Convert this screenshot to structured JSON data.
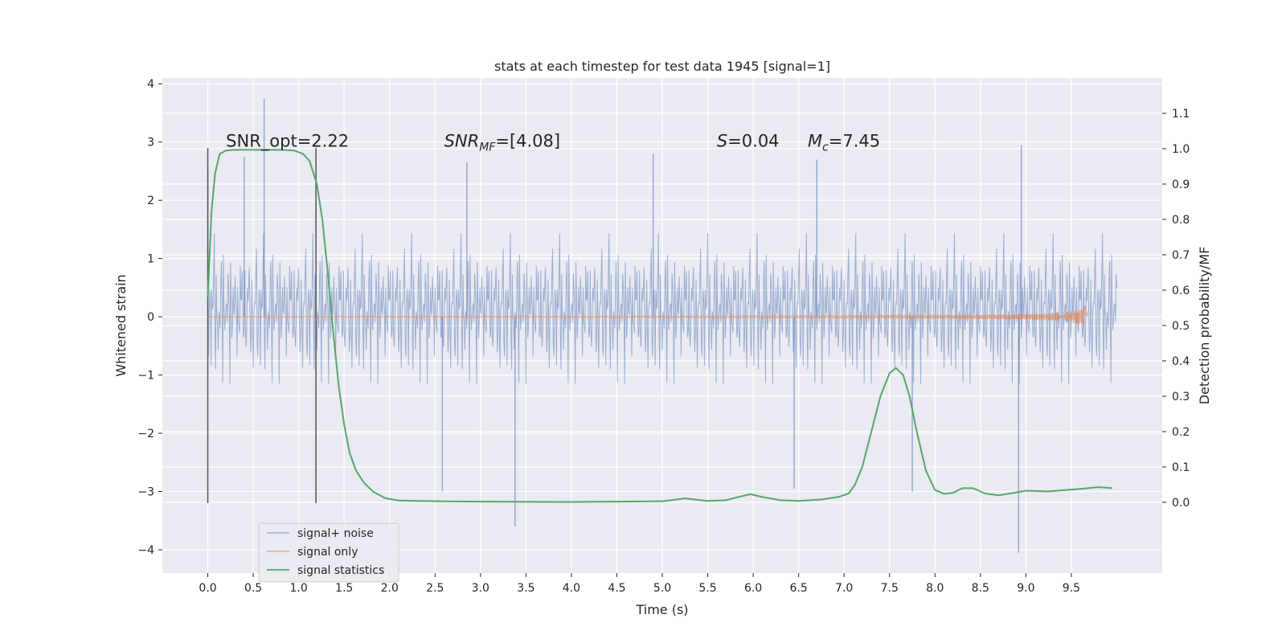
{
  "chart_data": {
    "type": "line",
    "title": "stats at each timestep for test data 1945 [signal=1]",
    "xlabel": "Time (s)",
    "ylabel": "Whitened strain",
    "ylabel_right": "Detection probability/MF",
    "xlim": [
      -0.5,
      10.5
    ],
    "ylim": [
      -4.4,
      4.1
    ],
    "ylim_right": [
      -0.2,
      1.2
    ],
    "x_ticks": [
      0.0,
      0.5,
      1.0,
      1.5,
      2.0,
      2.5,
      3.0,
      3.5,
      4.0,
      4.5,
      5.0,
      5.5,
      6.0,
      6.5,
      7.0,
      7.5,
      8.0,
      8.5,
      9.0,
      9.5
    ],
    "x_tick_labels": [
      "0.0",
      "0.5",
      "1.0",
      "1.5",
      "2.0",
      "2.5",
      "3.0",
      "3.5",
      "4.0",
      "4.5",
      "5.0",
      "5.5",
      "6.0",
      "6.5",
      "7.0",
      "7.5",
      "8.0",
      "8.5",
      "9.0",
      "9.5"
    ],
    "y_ticks": [
      -4,
      -3,
      -2,
      -1,
      0,
      1,
      2,
      3,
      4
    ],
    "y_tick_labels": [
      "−4",
      "−3",
      "−2",
      "−1",
      "0",
      "1",
      "2",
      "3",
      "4"
    ],
    "y_right_ticks": [
      0.0,
      0.1,
      0.2,
      0.3,
      0.4,
      0.5,
      0.6,
      0.7,
      0.8,
      0.9,
      1.0,
      1.1
    ],
    "y_right_tick_labels": [
      "0.0",
      "0.1",
      "0.2",
      "0.3",
      "0.4",
      "0.5",
      "0.6",
      "0.7",
      "0.8",
      "0.9",
      "1.0",
      "1.1"
    ],
    "grid": true,
    "legend_position": "lower-left",
    "vertical_markers": [
      {
        "x": 0.0,
        "y_range": [
          -3.2,
          2.9
        ]
      },
      {
        "x": 1.19,
        "y_range": [
          -3.2,
          2.9
        ]
      }
    ],
    "annotations": [
      {
        "text": "SNR_opt=2.22",
        "x": 0.2,
        "y": 3.0
      },
      {
        "text_parts": [
          "SNR",
          "MF",
          "=[4.08]"
        ],
        "x": 2.6,
        "y": 3.0
      },
      {
        "text_parts": [
          "S",
          "=0.04"
        ],
        "x": 5.6,
        "y": 3.0
      },
      {
        "text_parts": [
          "M",
          "c",
          "=7.45"
        ],
        "x": 6.6,
        "y": 3.0
      }
    ],
    "series": [
      {
        "name": "signal+ noise",
        "color": "#4c72b0",
        "axis": "left",
        "style": "noise",
        "x_range": [
          0.0,
          10.0
        ],
        "typical_amplitude": 1.3,
        "peaks": [
          {
            "x": 0.62,
            "y": 3.75
          },
          {
            "x": 0.4,
            "y": 2.75
          },
          {
            "x": 0.0,
            "y": 2.5
          },
          {
            "x": 2.85,
            "y": 2.65
          },
          {
            "x": 4.9,
            "y": 2.8
          },
          {
            "x": 6.7,
            "y": 2.7
          },
          {
            "x": 8.95,
            "y": 2.95
          },
          {
            "x": 3.38,
            "y": -3.6
          },
          {
            "x": 8.92,
            "y": -4.05
          },
          {
            "x": 2.58,
            "y": -3.0
          },
          {
            "x": 6.45,
            "y": -2.95
          },
          {
            "x": 7.75,
            "y": -3.0
          }
        ]
      },
      {
        "name": "signal only",
        "color": "#dd8452",
        "axis": "left",
        "style": "chirp",
        "x_range": [
          0.0,
          9.68
        ],
        "max_amplitude": 0.25
      },
      {
        "name": "signal statistics",
        "color": "#55a868",
        "axis": "right",
        "style": "line",
        "x": [
          0.0,
          0.04,
          0.08,
          0.13,
          0.2,
          0.3,
          0.5,
          0.8,
          0.95,
          1.05,
          1.12,
          1.2,
          1.26,
          1.32,
          1.38,
          1.44,
          1.5,
          1.56,
          1.63,
          1.72,
          1.82,
          1.95,
          2.1,
          2.5,
          3.0,
          3.5,
          4.0,
          4.5,
          5.0,
          5.25,
          5.5,
          5.7,
          5.85,
          5.97,
          6.1,
          6.3,
          6.5,
          6.75,
          6.95,
          7.05,
          7.12,
          7.2,
          7.3,
          7.4,
          7.5,
          7.57,
          7.65,
          7.72,
          7.8,
          7.9,
          8.0,
          8.1,
          8.2,
          8.3,
          8.42,
          8.55,
          8.7,
          8.85,
          9.0,
          9.1,
          9.25,
          9.4,
          9.6,
          9.8,
          9.95
        ],
        "values": [
          0.58,
          0.82,
          0.93,
          0.985,
          0.995,
          0.997,
          0.997,
          0.997,
          0.995,
          0.985,
          0.965,
          0.9,
          0.8,
          0.65,
          0.48,
          0.33,
          0.22,
          0.14,
          0.09,
          0.055,
          0.03,
          0.012,
          0.005,
          0.003,
          0.002,
          0.0015,
          0.001,
          0.002,
          0.003,
          0.011,
          0.004,
          0.006,
          0.016,
          0.023,
          0.015,
          0.006,
          0.004,
          0.008,
          0.016,
          0.025,
          0.05,
          0.1,
          0.2,
          0.3,
          0.365,
          0.38,
          0.36,
          0.3,
          0.2,
          0.09,
          0.035,
          0.024,
          0.027,
          0.04,
          0.04,
          0.025,
          0.02,
          0.026,
          0.033,
          0.032,
          0.031,
          0.034,
          0.038,
          0.043,
          0.04
        ]
      }
    ]
  }
}
